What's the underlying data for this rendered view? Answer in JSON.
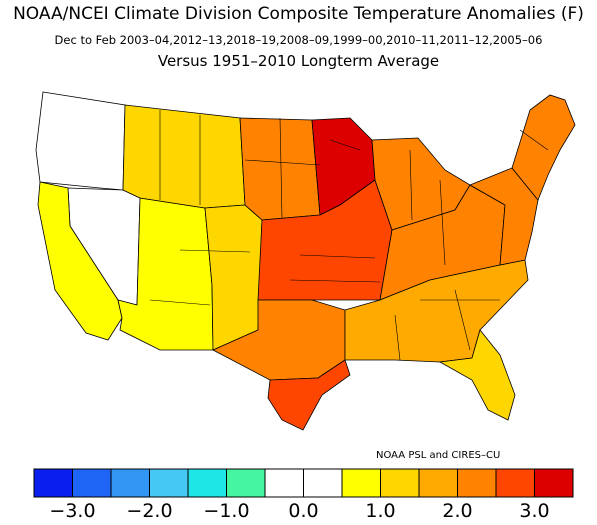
{
  "title": "NOAA/NCEI Climate Division Composite Temperature Anomalies (F)",
  "subtitle": "Dec to Feb  2003–04,2012–13,2018–19,2008–09,1999–00,2010–11,2011–12,2005–06",
  "subtitle2": "Versus 1951–2010 Longterm Average",
  "credit": "NOAA PSL and CIRES–CU",
  "units": "F",
  "colorbar": {
    "bins": [
      {
        "from": -3.5,
        "to": -3.0,
        "color": "#0a1ef0"
      },
      {
        "from": -3.0,
        "to": -2.5,
        "color": "#1e64f5"
      },
      {
        "from": -2.5,
        "to": -2.0,
        "color": "#3296f5"
      },
      {
        "from": -2.0,
        "to": -1.5,
        "color": "#46c8f5"
      },
      {
        "from": -1.5,
        "to": -1.0,
        "color": "#1ee6e6"
      },
      {
        "from": -1.0,
        "to": -0.5,
        "color": "#46f5a0"
      },
      {
        "from": -0.5,
        "to": 0.0,
        "color": "#ffffff"
      },
      {
        "from": 0.0,
        "to": 0.5,
        "color": "#ffffff"
      },
      {
        "from": 0.5,
        "to": 1.0,
        "color": "#ffff00"
      },
      {
        "from": 1.0,
        "to": 1.5,
        "color": "#ffd700"
      },
      {
        "from": 1.5,
        "to": 2.0,
        "color": "#ffaa00"
      },
      {
        "from": 2.0,
        "to": 2.5,
        "color": "#ff8200"
      },
      {
        "from": 2.5,
        "to": 3.0,
        "color": "#ff4600"
      },
      {
        "from": 3.0,
        "to": 3.5,
        "color": "#dc0000"
      }
    ],
    "ticks": [
      {
        "value": -3.0,
        "label": "−3.0"
      },
      {
        "value": -2.0,
        "label": "−2.0"
      },
      {
        "value": -1.0,
        "label": "−1.0"
      },
      {
        "value": 0.0,
        "label": "0.0"
      },
      {
        "value": 1.0,
        "label": "1.0"
      },
      {
        "value": 2.0,
        "label": "2.0"
      },
      {
        "value": 3.0,
        "label": "3.0"
      }
    ]
  },
  "regions": [
    {
      "name": "pacific-northwest",
      "anomaly": -0.2
    },
    {
      "name": "great-basin",
      "anomaly": 0.0
    },
    {
      "name": "california",
      "anomaly": 0.7
    },
    {
      "name": "southwest",
      "anomaly": 0.8
    },
    {
      "name": "northern-rockies",
      "anomaly": 1.2
    },
    {
      "name": "southern-rockies",
      "anomaly": 1.3
    },
    {
      "name": "northern-plains",
      "anomaly": 2.3
    },
    {
      "name": "upper-midwest",
      "anomaly": 3.2
    },
    {
      "name": "central-plains",
      "anomaly": 2.6
    },
    {
      "name": "texas",
      "anomaly": 2.4
    },
    {
      "name": "south-texas",
      "anomaly": 2.8
    },
    {
      "name": "great-lakes",
      "anomaly": 2.3
    },
    {
      "name": "ohio-valley",
      "anomaly": 2.2
    },
    {
      "name": "southeast",
      "anomaly": 1.7
    },
    {
      "name": "florida",
      "anomaly": 1.1
    },
    {
      "name": "mid-atlantic",
      "anomaly": 2.2
    },
    {
      "name": "new-england",
      "anomaly": 2.1
    }
  ]
}
